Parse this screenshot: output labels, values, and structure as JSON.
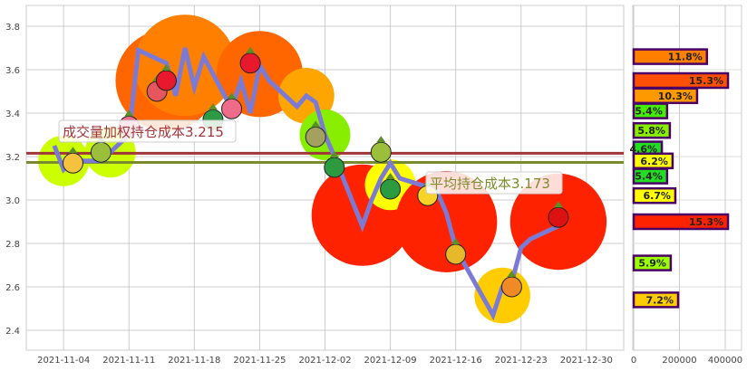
{
  "chart_data": [
    {
      "type": "line",
      "y_ticks": [
        "2.4",
        "2.6",
        "2.8",
        "3.0",
        "3.2",
        "3.4",
        "3.6",
        "3.8"
      ],
      "ylim": [
        2.3,
        3.88
      ],
      "x_ticks": [
        "2021-11-04",
        "2021-11-11",
        "2021-11-18",
        "2021-11-25",
        "2021-12-02",
        "2021-12-09",
        "2021-12-16",
        "2021-12-23",
        "2021-12-30"
      ],
      "xlim": [
        "2021-10-31",
        "2022-01-03"
      ],
      "grid": true,
      "series": [
        {
          "color": "#7b7bd6",
          "points": [
            [
              "2021-11-03",
              3.25
            ],
            [
              "2021-11-04",
              3.14
            ],
            [
              "2021-11-05",
              3.18
            ],
            [
              "2021-11-08",
              3.18
            ],
            [
              "2021-11-09",
              3.22
            ],
            [
              "2021-11-10",
              3.26
            ],
            [
              "2021-11-11",
              3.3
            ],
            [
              "2021-11-12",
              3.69
            ],
            [
              "2021-11-15",
              3.63
            ],
            [
              "2021-11-16",
              3.48
            ],
            [
              "2021-11-17",
              3.7
            ],
            [
              "2021-11-18",
              3.52
            ],
            [
              "2021-11-19",
              3.66
            ],
            [
              "2021-11-22",
              3.42
            ],
            [
              "2021-11-23",
              3.55
            ],
            [
              "2021-11-24",
              3.4
            ],
            [
              "2021-11-25",
              3.62
            ],
            [
              "2021-11-26",
              3.55
            ],
            [
              "2021-11-29",
              3.43
            ],
            [
              "2021-11-30",
              3.48
            ],
            [
              "2021-12-01",
              3.45
            ],
            [
              "2021-12-02",
              3.3
            ],
            [
              "2021-12-03",
              3.2
            ],
            [
              "2021-12-06",
              2.88
            ],
            [
              "2021-12-07",
              3.0
            ],
            [
              "2021-12-08",
              3.1
            ],
            [
              "2021-12-09",
              3.17
            ],
            [
              "2021-12-10",
              3.1
            ],
            [
              "2021-12-13",
              3.06
            ],
            [
              "2021-12-14",
              3.04
            ],
            [
              "2021-12-15",
              2.94
            ],
            [
              "2021-12-16",
              2.78
            ],
            [
              "2021-12-17",
              2.7
            ],
            [
              "2021-12-20",
              2.47
            ],
            [
              "2021-12-21",
              2.6
            ],
            [
              "2021-12-22",
              2.62
            ],
            [
              "2021-12-23",
              2.78
            ],
            [
              "2021-12-24",
              2.82
            ],
            [
              "2021-12-27",
              2.88
            ]
          ]
        }
      ],
      "clusters": [
        {
          "date": "2021-11-04",
          "price": 3.18,
          "color": "#ccff00",
          "weight": 1
        },
        {
          "date": "2021-11-09",
          "price": 3.22,
          "color": "#ccff00",
          "weight": 1
        },
        {
          "date": "2021-11-15",
          "price": 3.55,
          "color": "#ff6600",
          "weight": 3
        },
        {
          "date": "2021-11-17",
          "price": 3.62,
          "color": "#ff8000",
          "weight": 3
        },
        {
          "date": "2021-11-25",
          "price": 3.58,
          "color": "#ff6600",
          "weight": 2.4
        },
        {
          "date": "2021-11-30",
          "price": 3.48,
          "color": "#ffa500",
          "weight": 1.2
        },
        {
          "date": "2021-12-02",
          "price": 3.3,
          "color": "#88ee00",
          "weight": 1
        },
        {
          "date": "2021-12-06",
          "price": 2.93,
          "color": "#ff2200",
          "weight": 3
        },
        {
          "date": "2021-12-09",
          "price": 3.07,
          "color": "#ffff00",
          "weight": 1
        },
        {
          "date": "2021-12-15",
          "price": 2.9,
          "color": "#ff2200",
          "weight": 3
        },
        {
          "date": "2021-12-21",
          "price": 2.56,
          "color": "#ffcc00",
          "weight": 1.2
        },
        {
          "date": "2021-12-27",
          "price": 2.9,
          "color": "#ff2200",
          "weight": 2.8
        }
      ],
      "icons": [
        {
          "name": "pineapple-icon",
          "date": "2021-11-05",
          "price": 3.17,
          "color": "#f4c23c"
        },
        {
          "name": "kiwi-icon",
          "date": "2021-11-08",
          "price": 3.22,
          "color": "#9bbf3a"
        },
        {
          "name": "radish-icon",
          "date": "2021-11-11",
          "price": 3.34,
          "color": "#ef6b8a"
        },
        {
          "name": "watermelon-icon",
          "date": "2021-11-14",
          "price": 3.5,
          "color": "#e6565e"
        },
        {
          "name": "strawberry-icon",
          "date": "2021-11-15",
          "price": 3.55,
          "color": "#e8192c"
        },
        {
          "name": "watermelon-icon",
          "date": "2021-11-20",
          "price": 3.37,
          "color": "#2d9b45"
        },
        {
          "name": "radish-icon",
          "date": "2021-11-22",
          "price": 3.42,
          "color": "#ef6b8a"
        },
        {
          "name": "strawberry-icon",
          "date": "2021-11-24",
          "price": 3.63,
          "color": "#e8192c"
        },
        {
          "name": "pear-icon",
          "date": "2021-12-01",
          "price": 3.29,
          "color": "#a3a060"
        },
        {
          "name": "pea-icon",
          "date": "2021-12-03",
          "price": 3.15,
          "color": "#2c9a3f"
        },
        {
          "name": "kiwi-icon",
          "date": "2021-12-08",
          "price": 3.22,
          "color": "#9bbf3a"
        },
        {
          "name": "pea-icon",
          "date": "2021-12-09",
          "price": 3.05,
          "color": "#2c9a3f"
        },
        {
          "name": "banana-icon",
          "date": "2021-12-13",
          "price": 3.02,
          "color": "#f6d327"
        },
        {
          "name": "corn-icon",
          "date": "2021-12-16",
          "price": 2.75,
          "color": "#e5b92a"
        },
        {
          "name": "carrot-icon",
          "date": "2021-12-22",
          "price": 2.6,
          "color": "#f08a24"
        },
        {
          "name": "apple-icon",
          "date": "2021-12-27",
          "price": 2.92,
          "color": "#dd1111"
        }
      ],
      "reference_lines": [
        {
          "label": "成交量加权持仓成本3.215",
          "value": 3.215,
          "color": "#a0353a"
        },
        {
          "label": "平均持仓成本3.173",
          "value": 3.173,
          "color": "#7a8b2e"
        }
      ]
    },
    {
      "type": "bar",
      "orientation": "horizontal",
      "x_ticks": [
        "0",
        "200000",
        "400000"
      ],
      "xlim": [
        0,
        470000
      ],
      "grid": true,
      "bars": [
        {
          "price": 3.66,
          "value": 320000,
          "label": "11.8%",
          "color": "#ff8000"
        },
        {
          "price": 3.55,
          "value": 412000,
          "label": "15.3%",
          "color": "#ff5000"
        },
        {
          "price": 3.48,
          "value": 277000,
          "label": "10.3%",
          "color": "#ff9900"
        },
        {
          "price": 3.41,
          "value": 146000,
          "label": "5.4%",
          "color": "#44ee00"
        },
        {
          "price": 3.32,
          "value": 158000,
          "label": "5.8%",
          "color": "#88ee00"
        },
        {
          "price": 3.235,
          "value": 123000,
          "label": "4.6%",
          "color": "#22dd22"
        },
        {
          "price": 3.18,
          "value": 170000,
          "label": "6.2%",
          "color": "#ffff00"
        },
        {
          "price": 3.11,
          "value": 146000,
          "label": "5.4%",
          "color": "#22dd22"
        },
        {
          "price": 3.02,
          "value": 182000,
          "label": "6.7%",
          "color": "#ffff00"
        },
        {
          "price": 2.9,
          "value": 412000,
          "label": "15.3%",
          "color": "#ff2200"
        },
        {
          "price": 2.71,
          "value": 162000,
          "label": "5.9%",
          "color": "#99ff00"
        },
        {
          "price": 2.54,
          "value": 194000,
          "label": "7.2%",
          "color": "#ffcc00"
        }
      ]
    }
  ]
}
